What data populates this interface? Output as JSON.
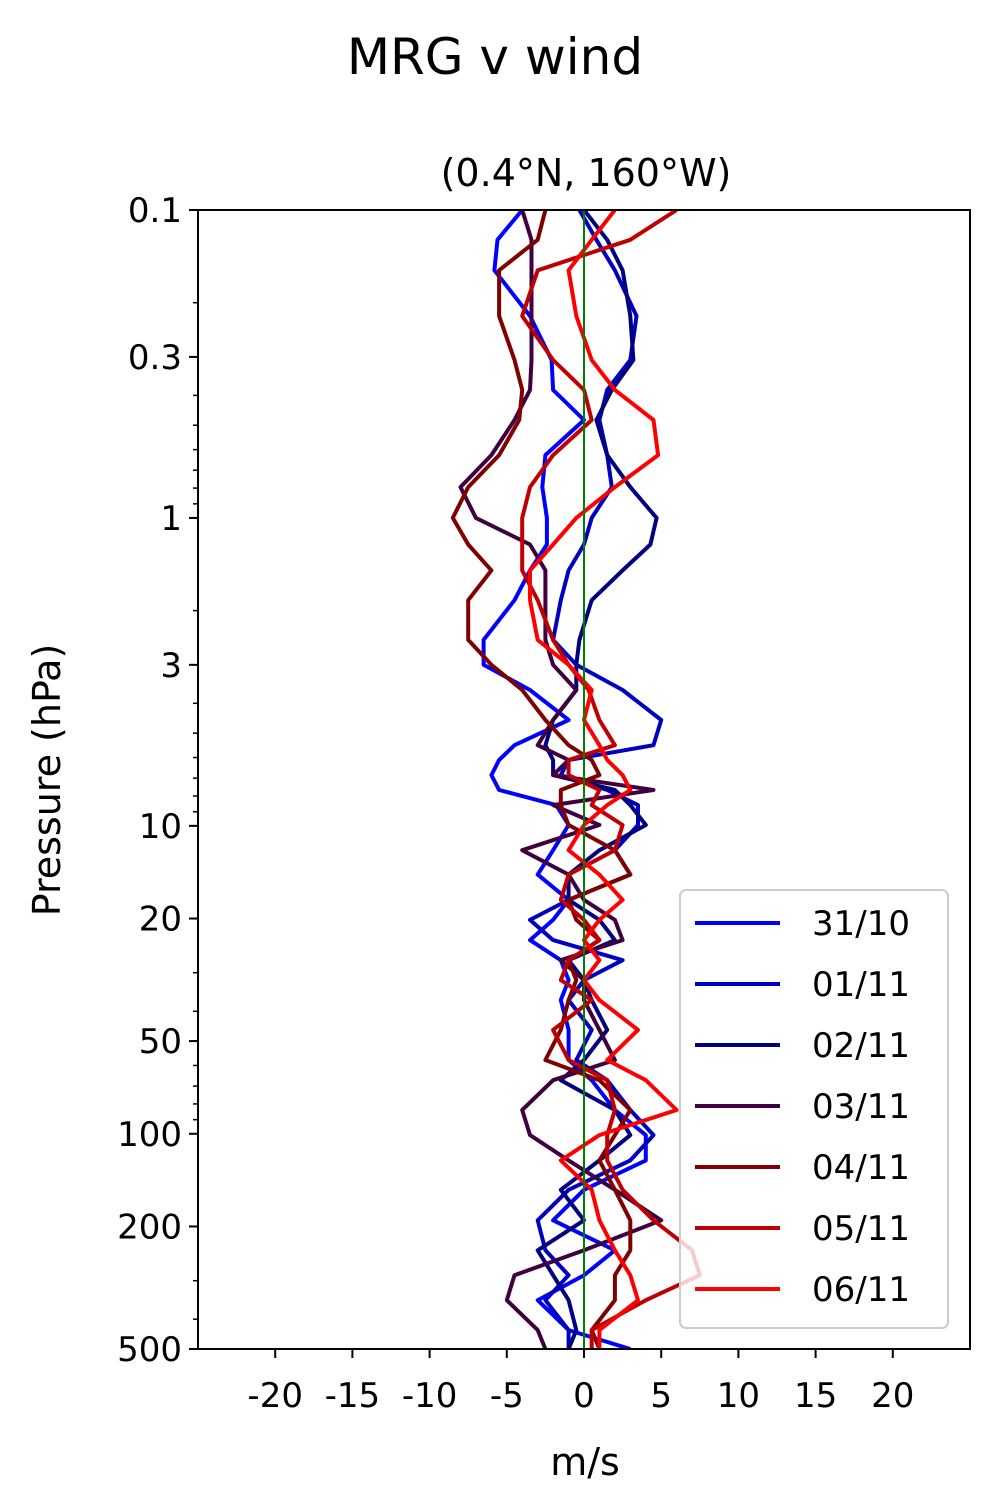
{
  "chart_data": {
    "type": "line",
    "title": "MRG v wind",
    "subtitle": "(0.4°N, 160°W)",
    "xlabel": "m/s",
    "ylabel": "Pressure (hPa)",
    "xlim": [
      -25,
      25
    ],
    "ylim": [
      500,
      0.1
    ],
    "yscale": "log",
    "xticks": [
      -20,
      -15,
      -10,
      -5,
      0,
      5,
      10,
      15,
      20
    ],
    "yticks": [
      0.1,
      0.3,
      1,
      3,
      10,
      20,
      50,
      100,
      200,
      500
    ],
    "legend_position": "lower-right",
    "reference_line": {
      "x": 0,
      "color": "#007f00"
    },
    "pressure_levels": [
      0.1,
      0.125,
      0.157,
      0.221,
      0.307,
      0.384,
      0.481,
      0.625,
      0.794,
      1.0,
      1.22,
      1.48,
      1.85,
      2.49,
      3.0,
      3.62,
      4.53,
      5.47,
      6.11,
      6.84,
      7.65,
      8.56,
      9.94,
      12.0,
      14.4,
      17.4,
      20.2,
      23.5,
      27.3,
      31.7,
      36.8,
      46.0,
      57.6,
      67.0,
      83.7,
      101,
      122,
      152,
      191,
      239,
      288,
      347,
      434,
      500
    ],
    "series": [
      {
        "name": "31/10",
        "color": "#0000ff",
        "values": [
          -4,
          -5.6,
          -5.8,
          -3.5,
          -2.1,
          -2.0,
          0,
          -2.5,
          -2.7,
          -2.4,
          -2.4,
          -3.5,
          -4.5,
          -6.5,
          -6.5,
          -3.5,
          -1,
          -4.5,
          -5.5,
          -6,
          -5.5,
          -1.8,
          -1,
          -2,
          -3,
          -1,
          -2,
          -3.5,
          -1.5,
          -1,
          -1.5,
          -1,
          -1,
          0.5,
          2,
          4,
          4,
          0,
          -2,
          2,
          0,
          -3,
          -1,
          3
        ]
      },
      {
        "name": "01/11",
        "color": "#0000c0",
        "values": [
          -0.3,
          0.8,
          2,
          3.4,
          3,
          1.5,
          1,
          1.5,
          1.8,
          0.5,
          0,
          -1,
          -1.5,
          -2,
          -0.5,
          2.5,
          5,
          4.5,
          -1,
          -1.5,
          1.5,
          3.5,
          3.5,
          2,
          3,
          -1,
          -3.5,
          -2,
          2.5,
          0,
          -1,
          0.5,
          -0.5,
          1.5,
          3,
          4.5,
          3,
          -1,
          -3,
          -2.5,
          -1,
          -2.5,
          -1,
          -1
        ]
      },
      {
        "name": "02/11",
        "color": "#000080",
        "values": [
          0,
          1.5,
          2.5,
          3,
          3.2,
          1.8,
          0.8,
          1.5,
          3,
          4.7,
          4.3,
          2.5,
          0.5,
          -0.3,
          -0.5,
          -0.5,
          -2,
          -2.5,
          -2,
          -2,
          2,
          3,
          4,
          1,
          -1,
          -1,
          1,
          2,
          -1,
          0,
          0.5,
          1.5,
          0,
          -1.5,
          2,
          3,
          1,
          -1.5,
          0,
          -3,
          -2,
          -1,
          -0.5,
          -1
        ]
      },
      {
        "name": "03/11",
        "color": "#400040",
        "values": [
          -4,
          -3.4,
          -3.4,
          -3.4,
          -3.4,
          -3.5,
          -4.5,
          -6,
          -8,
          -7,
          -3.5,
          -2.5,
          -2.5,
          -2.5,
          -2,
          -0.5,
          -2,
          -3,
          -1,
          -2,
          4.5,
          -2,
          1,
          -4,
          -1,
          0,
          2,
          2.5,
          -1.5,
          0,
          0,
          1,
          2,
          -2,
          -4,
          -3.5,
          -1,
          2,
          5,
          0,
          -4.5,
          -5,
          -3,
          -2.5
        ]
      },
      {
        "name": "04/11",
        "color": "#800000",
        "values": [
          -2.5,
          -3,
          -5.5,
          -5.5,
          -4.5,
          -4,
          -4.2,
          -5.5,
          -7.5,
          -8.5,
          -7.5,
          -6,
          -7.5,
          -7.5,
          -6,
          -4,
          -2.5,
          -1,
          0.5,
          1,
          -1.5,
          -1.5,
          -1,
          2,
          3,
          -1,
          -0.5,
          1,
          -1,
          -0.5,
          -1,
          -1.5,
          -2.5,
          1,
          3,
          2,
          1,
          2,
          3,
          3,
          2,
          2,
          0.5,
          1
        ]
      },
      {
        "name": "05/11",
        "color": "#c00000",
        "values": [
          6,
          3,
          -3,
          -4,
          -2,
          0,
          0.5,
          -2,
          -3.5,
          -4,
          -4,
          -4,
          -3,
          -2,
          -1,
          0.3,
          1,
          2,
          -1,
          -1,
          1,
          0.5,
          2.5,
          2,
          -1,
          -1.5,
          0,
          1,
          -1,
          -1.5,
          0.5,
          -2,
          -1,
          1.5,
          2,
          1.5,
          1.5,
          2.5,
          4.5,
          7,
          7.5,
          4,
          0.5,
          0.5
        ]
      },
      {
        "name": "06/11",
        "color": "#ff0000",
        "values": [
          2,
          0.5,
          -1,
          -0.5,
          0.5,
          2,
          4.5,
          4.8,
          2,
          -0.5,
          -2,
          -3.5,
          -3.5,
          -3,
          -1,
          0.5,
          0,
          1,
          1.5,
          2.5,
          3,
          1.5,
          0,
          -1,
          1,
          2.5,
          1,
          0,
          1,
          0,
          1,
          3.5,
          1.5,
          4,
          6,
          1,
          -1.5,
          0.5,
          1,
          2,
          3,
          3.5,
          1,
          1
        ]
      }
    ]
  }
}
